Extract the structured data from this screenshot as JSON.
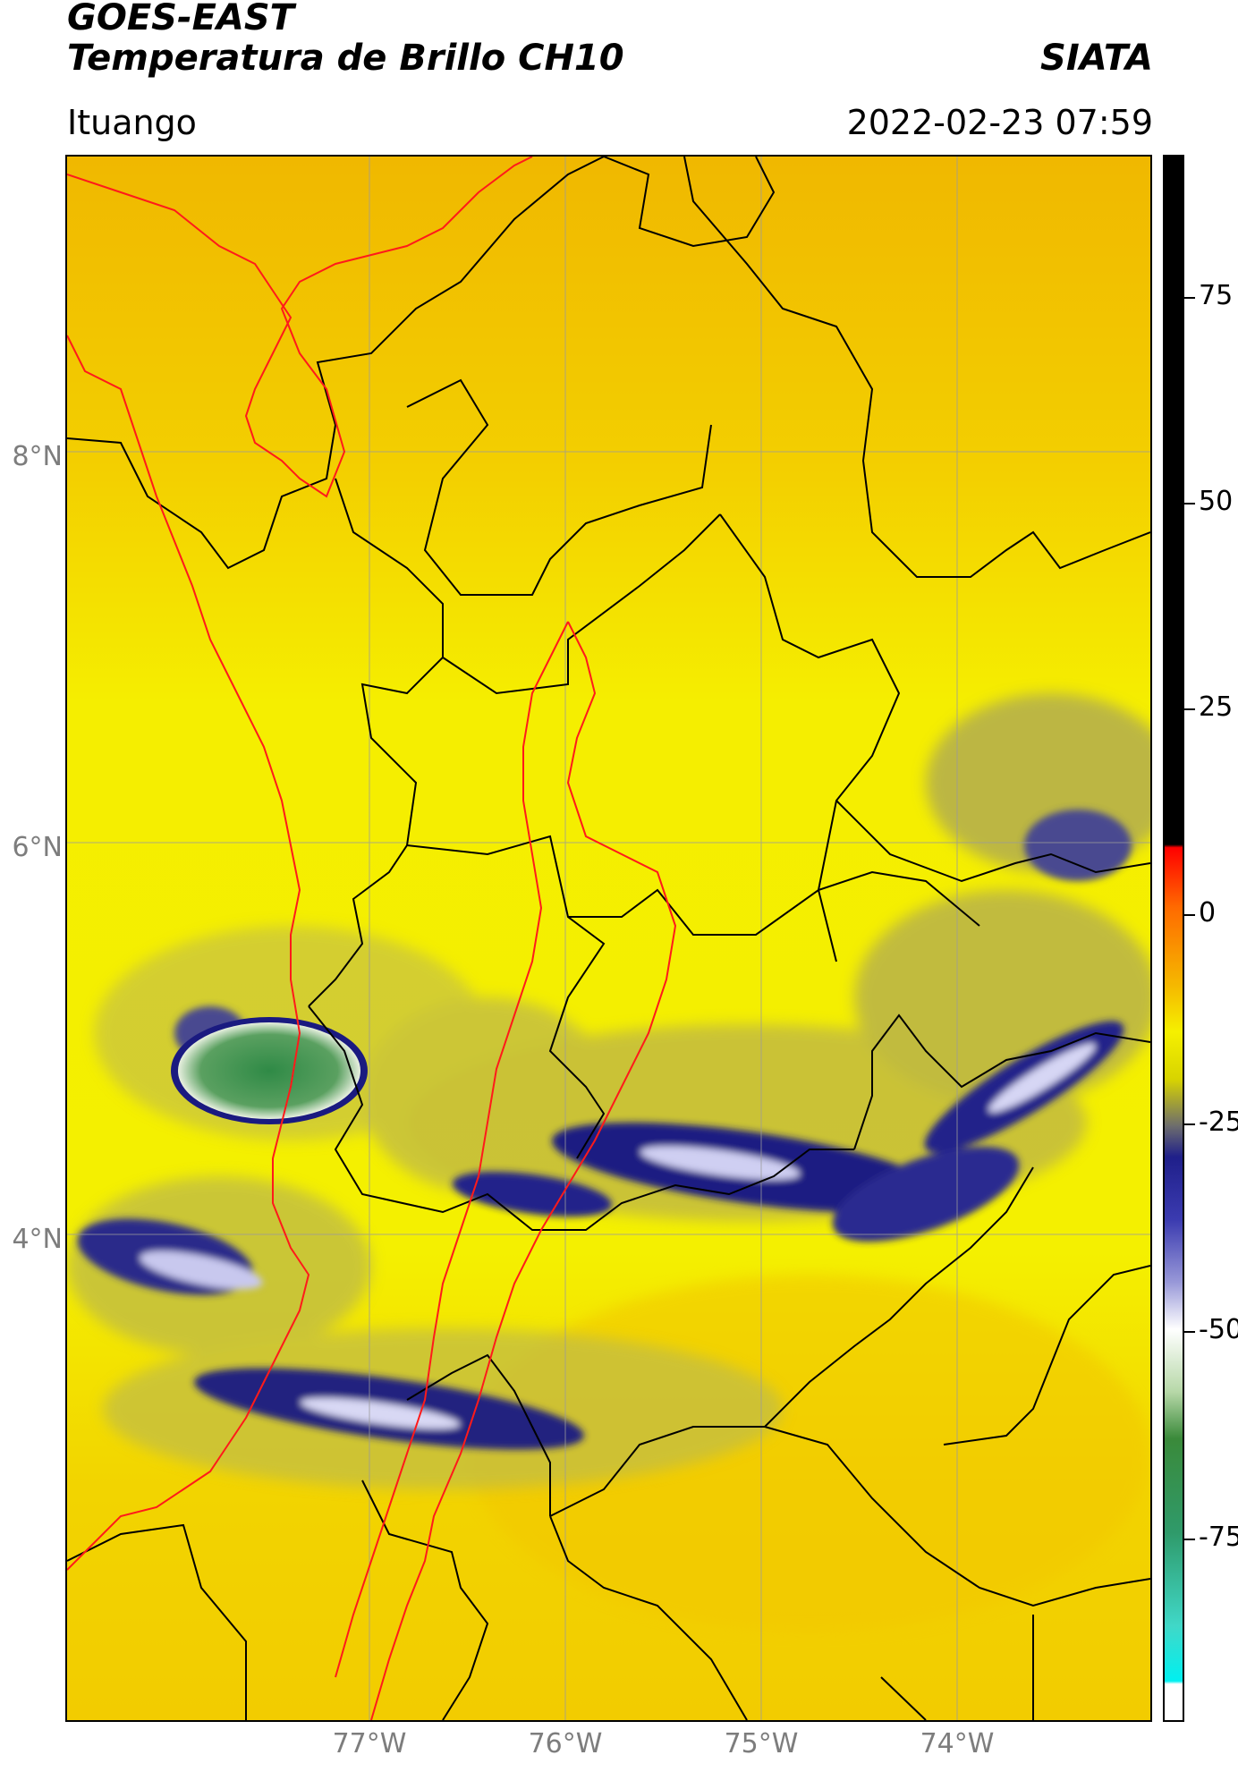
{
  "header": {
    "title_line1": "GOES-EAST",
    "title_line2": "Temperatura de Brillo CH10",
    "brand": "SIATA",
    "region": "Ituango",
    "timestamp": "2022-02-23 07:59"
  },
  "map": {
    "lat_ticks": [
      "8°N",
      "6°N",
      "4°N"
    ],
    "lon_ticks": [
      "77°W",
      "76°W",
      "75°W",
      "74°W"
    ],
    "colors": {
      "warm_background": "#f2c200",
      "yellow": "#f5f000",
      "olive": "#b8b24a",
      "cloud_dark": "#1b1a78",
      "cloud_light": "#e8e8f8",
      "green_core": "#3c8a4a",
      "border_black": "#000000",
      "border_red": "#ff1a1a",
      "grid": "#9a9a9a"
    }
  },
  "colorbar": {
    "ticks": [
      "75",
      "50",
      "25",
      "0",
      "-25",
      "-50",
      "-75"
    ]
  }
}
